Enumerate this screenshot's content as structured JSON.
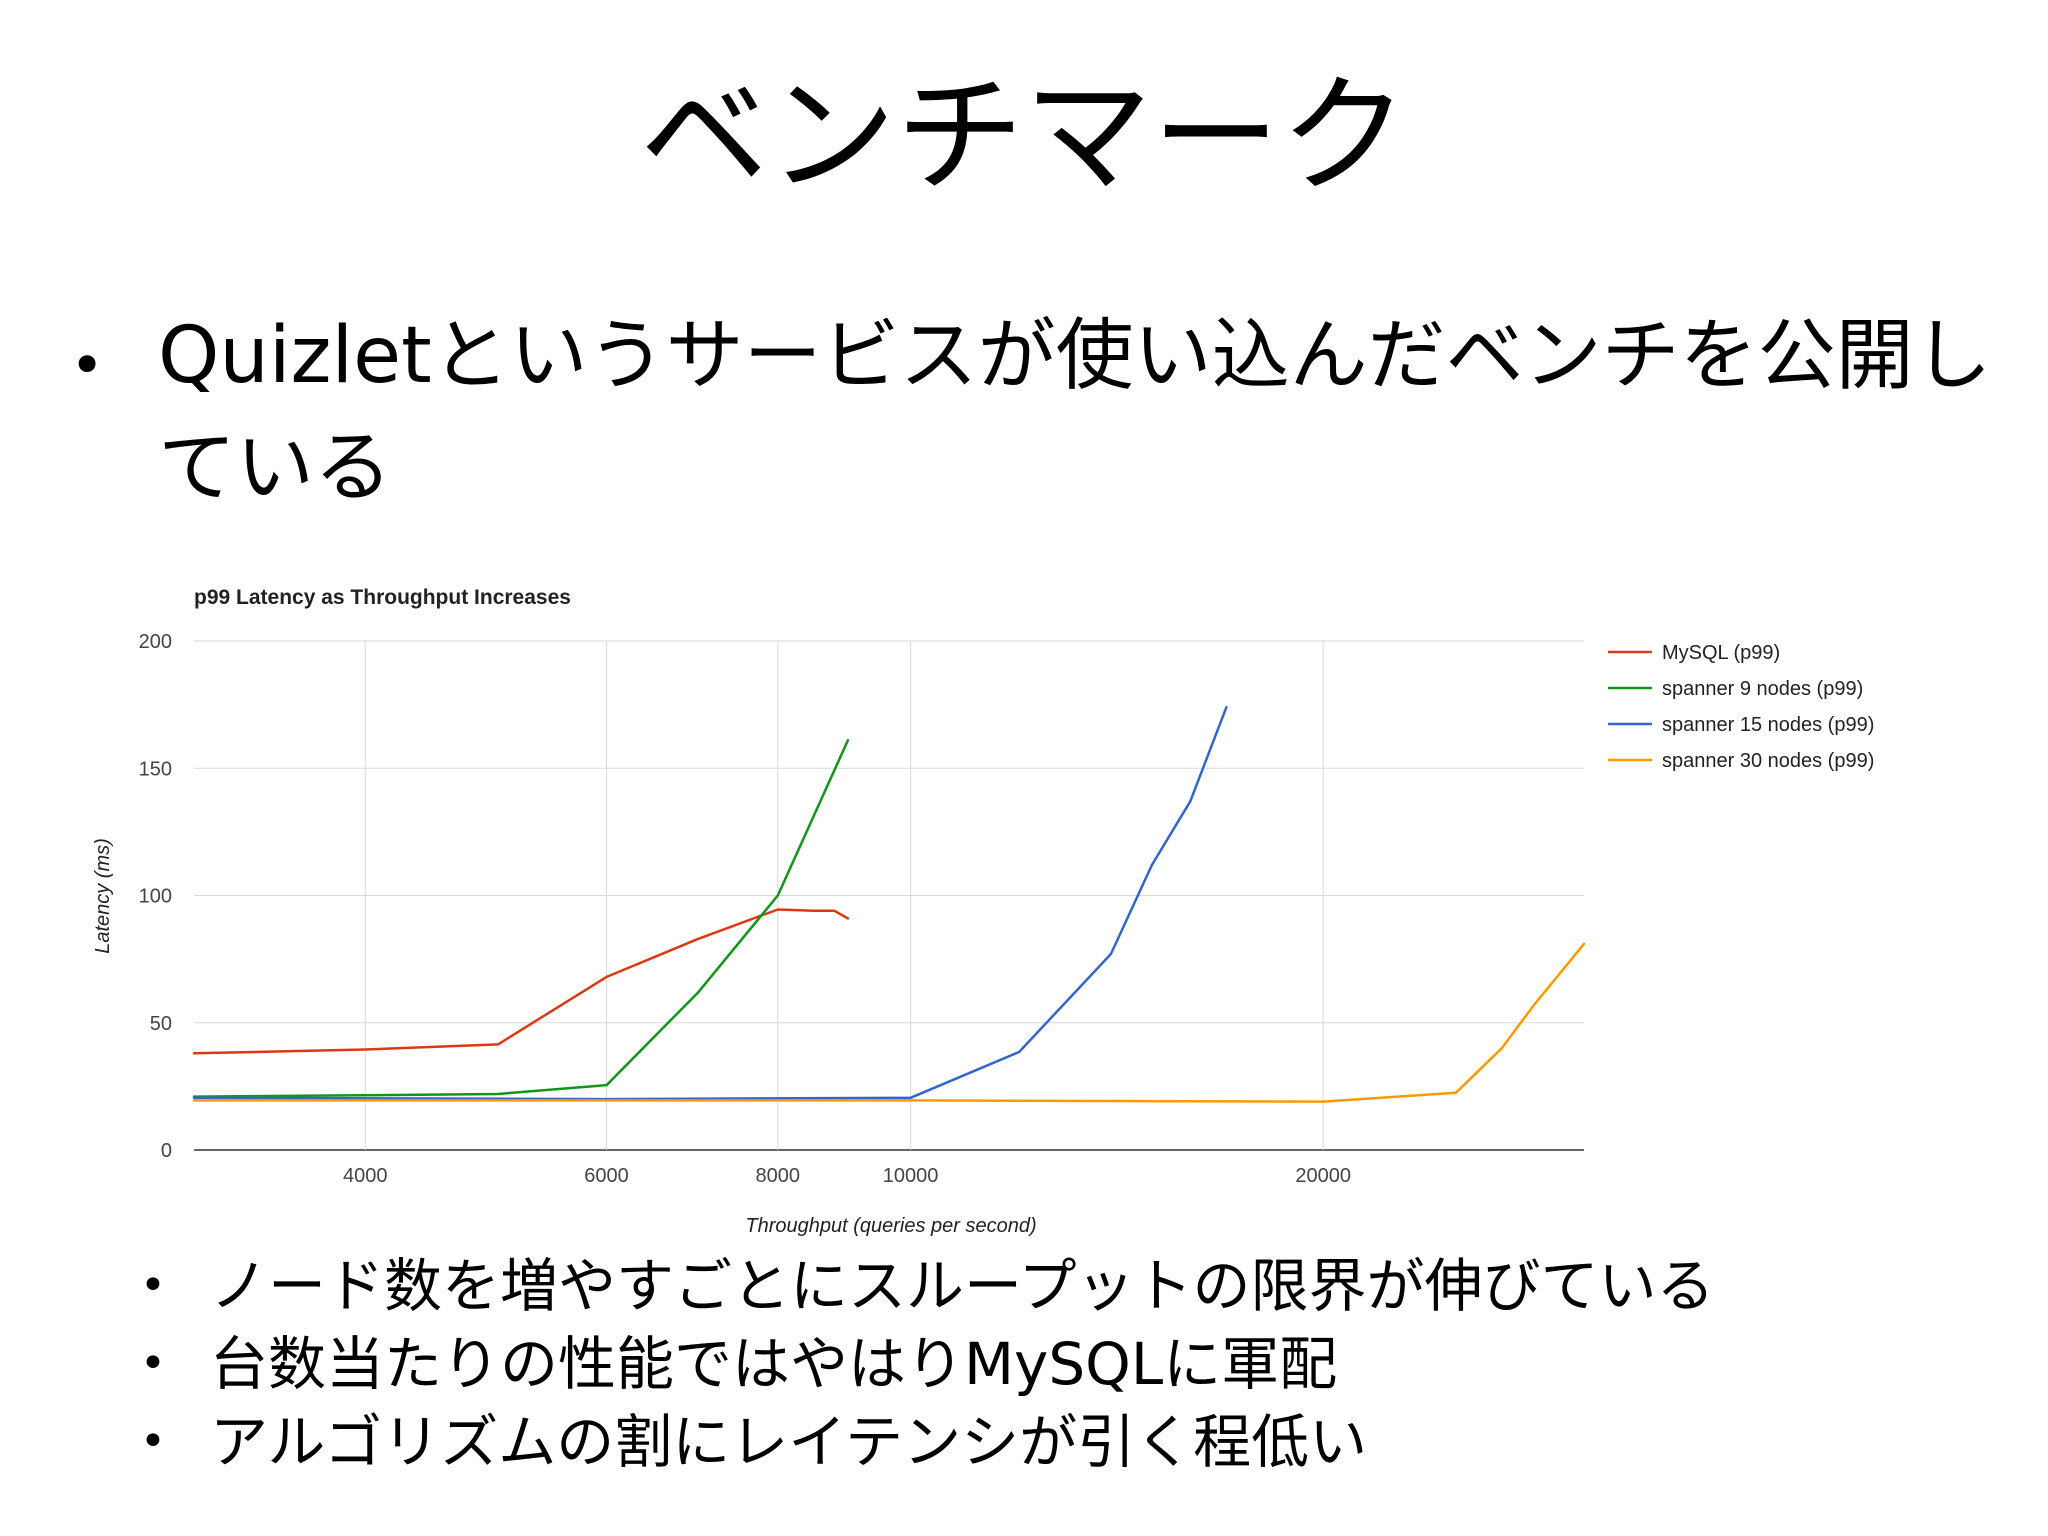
{
  "slide": {
    "title": "ベンチマーク",
    "main_bullet": "Quizletというサービスが使い込んだベンチを公開している",
    "sub_bullets": [
      "ノード数を増やすごとにスループットの限界が伸びている",
      "台数当たりの性能ではやはりMySQLに軍配",
      "アルゴリズムの割にレイテンシが引く程低い"
    ]
  },
  "chart_data": {
    "type": "line",
    "title": "p99 Latency as Throughput Increases",
    "xlabel": "Throughput (queries per second)",
    "ylabel": "Latency (ms)",
    "x_scale": "log",
    "xlim": [
      3000,
      31000
    ],
    "ylim": [
      0,
      200
    ],
    "xticks": [
      4000,
      6000,
      8000,
      10000,
      20000
    ],
    "yticks": [
      0,
      50,
      100,
      150,
      200
    ],
    "grid": true,
    "legend": "right",
    "series": [
      {
        "name": "MySQL (p99)",
        "color": "#dc3912",
        "points": [
          [
            3000,
            38
          ],
          [
            4000,
            39.5
          ],
          [
            5000,
            41.5
          ],
          [
            6000,
            68
          ],
          [
            7000,
            83
          ],
          [
            8000,
            94.5
          ],
          [
            8500,
            94
          ],
          [
            8800,
            94
          ],
          [
            9000,
            91
          ]
        ]
      },
      {
        "name": "spanner 9 nodes (p99)",
        "color": "#109618",
        "points": [
          [
            3000,
            21
          ],
          [
            4000,
            21.5
          ],
          [
            5000,
            22
          ],
          [
            6000,
            25.5
          ],
          [
            7000,
            62
          ],
          [
            8000,
            100
          ],
          [
            9000,
            161
          ]
        ]
      },
      {
        "name": "spanner 15 nodes (p99)",
        "color": "#3366cc",
        "points": [
          [
            3000,
            20.5
          ],
          [
            6000,
            20
          ],
          [
            10000,
            20.5
          ],
          [
            12000,
            38.5
          ],
          [
            14000,
            77
          ],
          [
            15000,
            112
          ],
          [
            16000,
            137
          ],
          [
            17000,
            174
          ]
        ]
      },
      {
        "name": "spanner 30 nodes (p99)",
        "color": "#ff9900",
        "points": [
          [
            3000,
            19.5
          ],
          [
            10000,
            19.5
          ],
          [
            20000,
            19
          ],
          [
            25000,
            22.5
          ],
          [
            27000,
            40
          ],
          [
            28500,
            57
          ],
          [
            31000,
            81
          ]
        ]
      }
    ]
  }
}
